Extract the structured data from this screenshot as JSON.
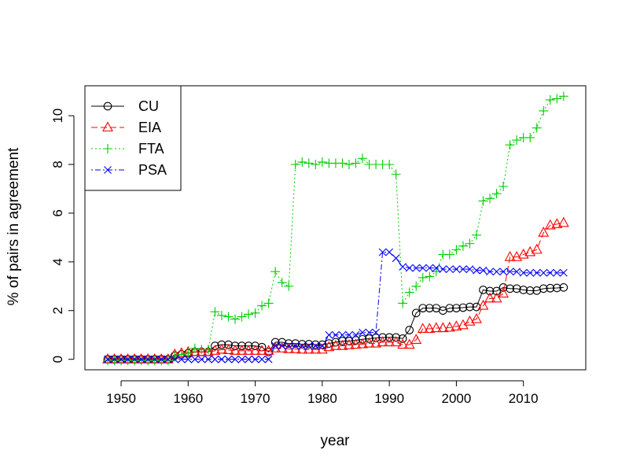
{
  "chart_data": {
    "type": "line",
    "title": "",
    "xlabel": "year",
    "ylabel": "% of pairs in agreement",
    "xlim": [
      1944.6,
      2019.3
    ],
    "ylim": [
      -0.43,
      11.23
    ],
    "x_ticks": [
      1950,
      1960,
      1970,
      1980,
      1990,
      2000,
      2010
    ],
    "y_ticks": [
      0,
      2,
      4,
      6,
      8,
      10
    ],
    "grid": false,
    "legend": {
      "position": "top-left"
    },
    "series": [
      {
        "name": "CU",
        "color": "#000000",
        "line_style": "solid",
        "marker": "circle",
        "x": [
          1948,
          1949,
          1950,
          1951,
          1952,
          1953,
          1954,
          1955,
          1956,
          1957,
          1958,
          1959,
          1960,
          1961,
          1962,
          1963,
          1964,
          1965,
          1966,
          1967,
          1968,
          1969,
          1970,
          1971,
          1972,
          1973,
          1974,
          1975,
          1976,
          1977,
          1978,
          1979,
          1980,
          1981,
          1982,
          1983,
          1984,
          1985,
          1986,
          1987,
          1988,
          1989,
          1990,
          1991,
          1992,
          1993,
          1994,
          1995,
          1996,
          1997,
          1998,
          1999,
          2000,
          2001,
          2002,
          2003,
          2004,
          2005,
          2006,
          2007,
          2008,
          2009,
          2010,
          2011,
          2012,
          2013,
          2014,
          2015,
          2016
        ],
        "y": [
          0,
          0,
          0,
          0,
          0,
          0,
          0,
          0,
          0,
          0,
          0.15,
          0.2,
          0.25,
          0.3,
          0.3,
          0.3,
          0.55,
          0.6,
          0.6,
          0.55,
          0.55,
          0.55,
          0.55,
          0.5,
          0.3,
          0.7,
          0.7,
          0.65,
          0.65,
          0.62,
          0.62,
          0.6,
          0.6,
          0.65,
          0.7,
          0.75,
          0.75,
          0.78,
          0.82,
          0.85,
          0.88,
          0.9,
          0.9,
          0.9,
          0.85,
          1.2,
          1.9,
          2.1,
          2.1,
          2.1,
          2.0,
          2.1,
          2.1,
          2.12,
          2.15,
          2.15,
          2.85,
          2.8,
          2.8,
          2.95,
          2.9,
          2.9,
          2.85,
          2.82,
          2.82,
          2.9,
          2.92,
          2.93,
          2.95
        ]
      },
      {
        "name": "EIA",
        "color": "#ff0000",
        "line_style": "dashed",
        "marker": "triangle",
        "x": [
          1948,
          1949,
          1950,
          1951,
          1952,
          1953,
          1954,
          1955,
          1956,
          1957,
          1958,
          1959,
          1960,
          1961,
          1962,
          1963,
          1964,
          1965,
          1966,
          1967,
          1968,
          1969,
          1970,
          1971,
          1972,
          1973,
          1974,
          1975,
          1976,
          1977,
          1978,
          1979,
          1980,
          1981,
          1982,
          1983,
          1984,
          1985,
          1986,
          1987,
          1988,
          1989,
          1990,
          1991,
          1992,
          1993,
          1994,
          1995,
          1996,
          1997,
          1998,
          1999,
          2000,
          2001,
          2002,
          2003,
          2004,
          2005,
          2006,
          2007,
          2008,
          2009,
          2010,
          2011,
          2012,
          2013,
          2014,
          2015,
          2016
        ],
        "y": [
          0,
          0,
          0,
          0,
          0,
          0,
          0,
          0,
          0,
          0,
          0.2,
          0.25,
          0.3,
          0.3,
          0.3,
          0.3,
          0.35,
          0.4,
          0.38,
          0.35,
          0.35,
          0.35,
          0.35,
          0.35,
          0.35,
          0.45,
          0.45,
          0.42,
          0.42,
          0.4,
          0.4,
          0.4,
          0.4,
          0.5,
          0.55,
          0.55,
          0.58,
          0.6,
          0.62,
          0.65,
          0.65,
          0.7,
          0.7,
          0.7,
          0.6,
          0.6,
          0.8,
          1.25,
          1.25,
          1.28,
          1.28,
          1.3,
          1.35,
          1.4,
          1.55,
          1.65,
          2.2,
          2.5,
          2.5,
          2.7,
          4.2,
          4.2,
          4.3,
          4.4,
          4.5,
          5.2,
          5.5,
          5.55,
          5.6
        ]
      },
      {
        "name": "FTA",
        "color": "#00cd00",
        "line_style": "dotted",
        "marker": "plus",
        "x": [
          1948,
          1949,
          1950,
          1951,
          1952,
          1953,
          1954,
          1955,
          1956,
          1957,
          1958,
          1959,
          1960,
          1961,
          1962,
          1963,
          1964,
          1965,
          1966,
          1967,
          1968,
          1969,
          1970,
          1971,
          1972,
          1973,
          1974,
          1975,
          1976,
          1977,
          1978,
          1979,
          1980,
          1981,
          1982,
          1983,
          1984,
          1985,
          1986,
          1987,
          1988,
          1989,
          1990,
          1991,
          1992,
          1993,
          1994,
          1995,
          1996,
          1997,
          1998,
          1999,
          2000,
          2001,
          2002,
          2003,
          2004,
          2005,
          2006,
          2007,
          2008,
          2009,
          2010,
          2011,
          2012,
          2013,
          2014,
          2015,
          2016
        ],
        "y": [
          -0.05,
          -0.05,
          -0.05,
          -0.05,
          -0.05,
          -0.05,
          -0.05,
          -0.05,
          -0.05,
          -0.05,
          0.1,
          0.2,
          0.25,
          0.45,
          0.4,
          0.4,
          1.95,
          1.8,
          1.75,
          1.65,
          1.75,
          1.85,
          1.9,
          2.2,
          2.3,
          3.6,
          3.15,
          3.0,
          8.0,
          8.1,
          8.05,
          8.0,
          8.1,
          8.05,
          8.05,
          8.05,
          8.0,
          8.05,
          8.25,
          8.0,
          8.0,
          8.0,
          8.0,
          7.6,
          2.3,
          2.75,
          3.0,
          3.35,
          3.4,
          3.6,
          4.3,
          4.3,
          4.5,
          4.65,
          4.75,
          5.1,
          6.5,
          6.6,
          6.8,
          7.1,
          8.8,
          9.0,
          9.1,
          9.1,
          9.5,
          10.2,
          10.65,
          10.7,
          10.8
        ]
      },
      {
        "name": "PSA",
        "color": "#0000ff",
        "line_style": "dashdot",
        "marker": "x",
        "x": [
          1948,
          1949,
          1950,
          1951,
          1952,
          1953,
          1954,
          1955,
          1956,
          1957,
          1958,
          1959,
          1960,
          1961,
          1962,
          1963,
          1964,
          1965,
          1966,
          1967,
          1968,
          1969,
          1970,
          1971,
          1972,
          1973,
          1974,
          1975,
          1976,
          1977,
          1978,
          1979,
          1980,
          1981,
          1982,
          1983,
          1984,
          1985,
          1986,
          1987,
          1988,
          1989,
          1990,
          1991,
          1992,
          1993,
          1994,
          1995,
          1996,
          1997,
          1998,
          1999,
          2000,
          2001,
          2002,
          2003,
          2004,
          2005,
          2006,
          2007,
          2008,
          2009,
          2010,
          2011,
          2012,
          2013,
          2014,
          2015,
          2016
        ],
        "y": [
          0,
          0,
          0,
          0,
          0,
          0,
          0,
          0,
          0,
          0,
          0,
          0,
          0,
          0,
          0,
          0,
          0,
          0,
          0,
          0,
          0,
          0,
          0,
          0,
          0,
          0.55,
          0.55,
          0.55,
          0.55,
          0.55,
          0.55,
          0.55,
          0.55,
          1.0,
          1.0,
          1.0,
          1.0,
          1.0,
          1.1,
          1.1,
          1.1,
          4.4,
          4.4,
          4.15,
          3.8,
          3.75,
          3.75,
          3.75,
          3.75,
          3.75,
          3.7,
          3.7,
          3.7,
          3.7,
          3.7,
          3.65,
          3.65,
          3.6,
          3.6,
          3.6,
          3.6,
          3.6,
          3.55,
          3.55,
          3.55,
          3.55,
          3.55,
          3.55,
          3.55
        ]
      }
    ]
  }
}
